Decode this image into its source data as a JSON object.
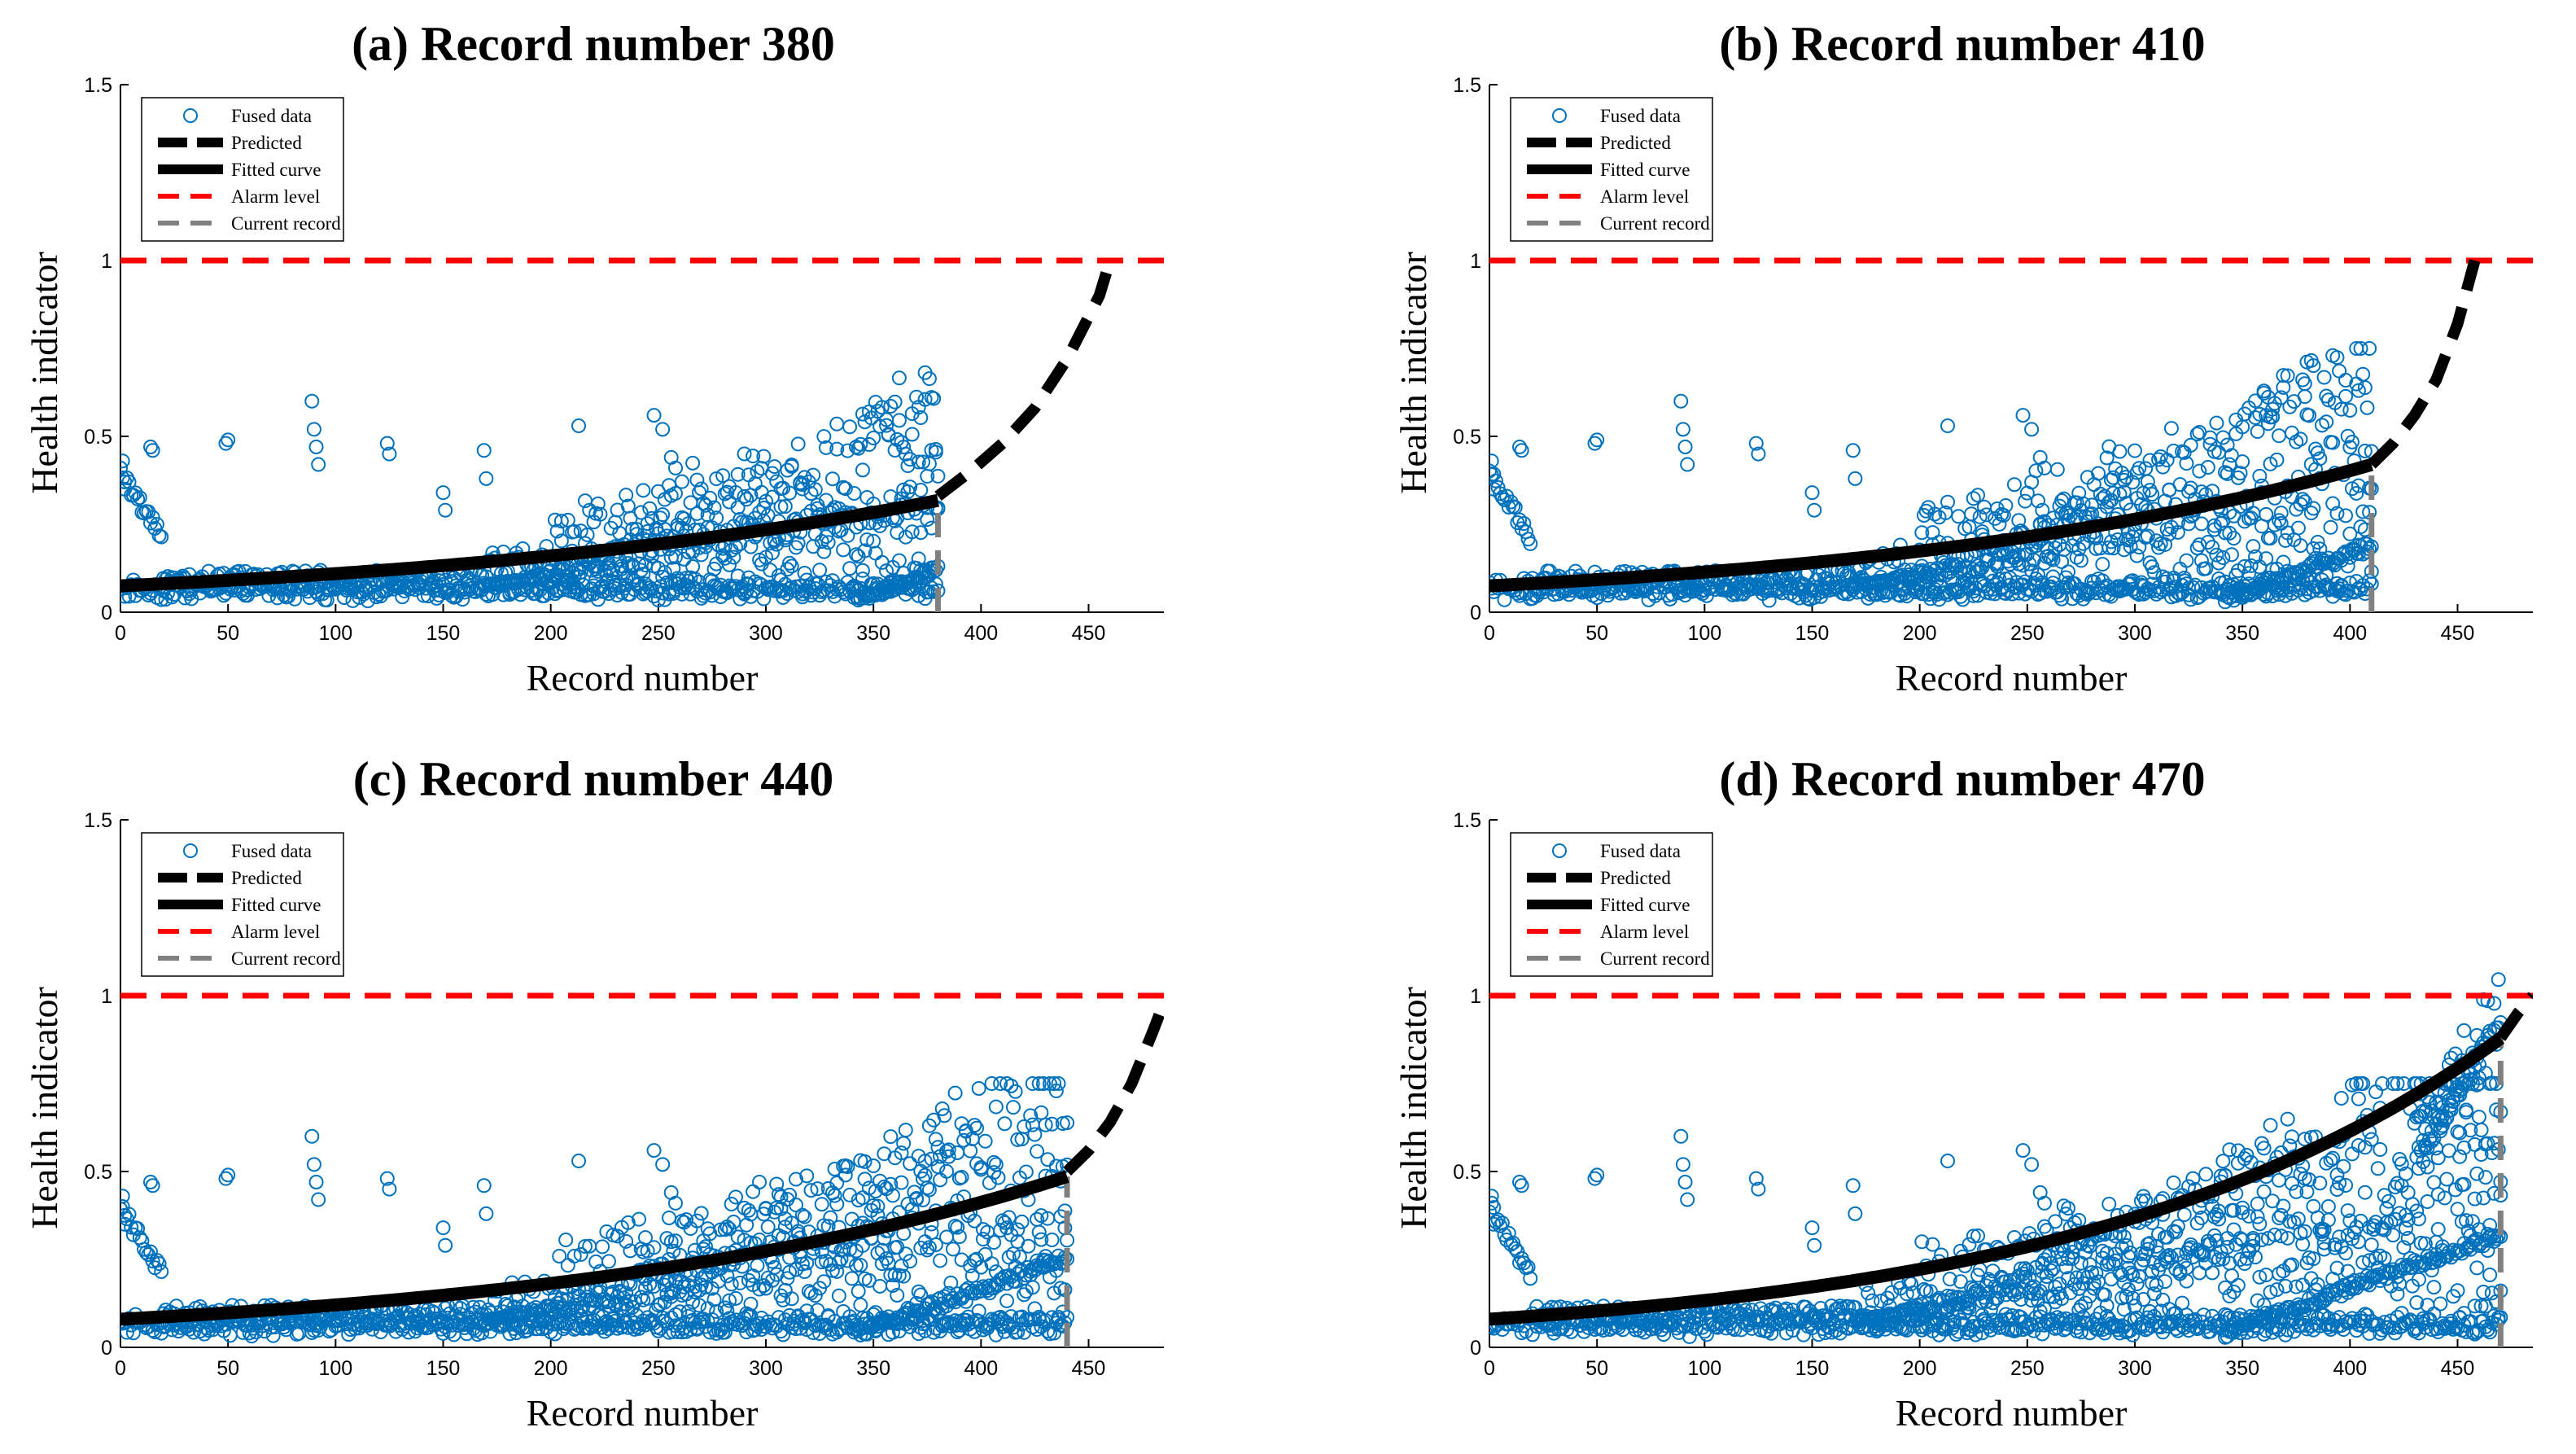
{
  "colors": {
    "fused": "#0072BD",
    "predicted": "#000000",
    "fitted": "#000000",
    "alarm": "#FF0000",
    "current": "#808080"
  },
  "chart_data": [
    {
      "type": "scatter",
      "title": "(a) Record number 380",
      "xlabel": "Record number",
      "ylabel": "Health indicator",
      "xlim": [
        0,
        485
      ],
      "ylim": [
        0,
        1.5
      ],
      "xticks": [
        0,
        50,
        100,
        150,
        200,
        250,
        300,
        350,
        400,
        450
      ],
      "yticks": [
        0,
        0.5,
        1,
        1.5
      ],
      "yticklabels": [
        "0",
        "0.5",
        "1",
        "1.5"
      ],
      "legend": [
        "Fused data",
        "Predicted",
        "Fitted curve",
        "Alarm level",
        "Current record"
      ],
      "legend_location": "top-left",
      "current_record": 380,
      "alarm_level": 1,
      "fitted_curve": {
        "a": 0.075,
        "k": 0.0038,
        "x_range": [
          0,
          380
        ]
      },
      "predicted_curve": {
        "x": [
          380,
          395,
          410,
          425,
          440,
          455,
          460
        ],
        "y": [
          0.33,
          0.4,
          0.48,
          0.58,
          0.72,
          0.9,
          1.0
        ]
      }
    },
    {
      "type": "scatter",
      "title": "(b) Record number 410",
      "xlabel": "Record number",
      "ylabel": "Health indicator",
      "xlim": [
        0,
        485
      ],
      "ylim": [
        0,
        1.5
      ],
      "xticks": [
        0,
        50,
        100,
        150,
        200,
        250,
        300,
        350,
        400,
        450
      ],
      "yticks": [
        0,
        0.5,
        1,
        1.5
      ],
      "yticklabels": [
        "0",
        "0.5",
        "1",
        "1.5"
      ],
      "legend": [
        "Fused data",
        "Predicted",
        "Fitted curve",
        "Alarm level",
        "Current record"
      ],
      "legend_location": "top-left",
      "current_record": 410,
      "alarm_level": 1,
      "fitted_curve": {
        "a": 0.075,
        "k": 0.0042,
        "x_range": [
          0,
          410
        ]
      },
      "predicted_curve": {
        "x": [
          410,
          420,
          430,
          440,
          450,
          458
        ],
        "y": [
          0.42,
          0.48,
          0.56,
          0.66,
          0.82,
          1.0
        ]
      }
    },
    {
      "type": "scatter",
      "title": "(c) Record number 440",
      "xlabel": "Record number",
      "ylabel": "Health indicator",
      "xlim": [
        0,
        485
      ],
      "ylim": [
        0,
        1.5
      ],
      "xticks": [
        0,
        50,
        100,
        150,
        200,
        250,
        300,
        350,
        400,
        450
      ],
      "yticks": [
        0,
        0.5,
        1,
        1.5
      ],
      "yticklabels": [
        "0",
        "0.5",
        "1",
        "1.5"
      ],
      "legend": [
        "Fused data",
        "Predicted",
        "Fitted curve",
        "Alarm level",
        "Current record"
      ],
      "legend_location": "top-left",
      "current_record": 440,
      "alarm_level": 1,
      "fitted_curve": {
        "a": 0.08,
        "k": 0.0041,
        "x_range": [
          0,
          440
        ]
      },
      "predicted_curve": {
        "x": [
          440,
          450,
          460,
          470,
          480,
          485
        ],
        "y": [
          0.5,
          0.56,
          0.64,
          0.75,
          0.9,
          0.98
        ]
      }
    },
    {
      "type": "scatter",
      "title": "(d) Record number 470",
      "xlabel": "Record number",
      "ylabel": "Health indicator",
      "xlim": [
        0,
        485
      ],
      "ylim": [
        0,
        1.5
      ],
      "xticks": [
        0,
        50,
        100,
        150,
        200,
        250,
        300,
        350,
        400,
        450
      ],
      "yticks": [
        0,
        0.5,
        1,
        1.5
      ],
      "yticklabels": [
        "0",
        "0.5",
        "1",
        "1.5"
      ],
      "legend": [
        "Fused data",
        "Predicted",
        "Fitted curve",
        "Alarm level",
        "Current record"
      ],
      "legend_location": "top-left",
      "current_record": 470,
      "alarm_level": 1,
      "fitted_curve": {
        "a": 0.08,
        "k": 0.0051,
        "x_range": [
          0,
          470
        ]
      },
      "predicted_curve": {
        "x": [
          470,
          478,
          485
        ],
        "y": [
          0.88,
          0.95,
          1.0
        ]
      }
    }
  ]
}
